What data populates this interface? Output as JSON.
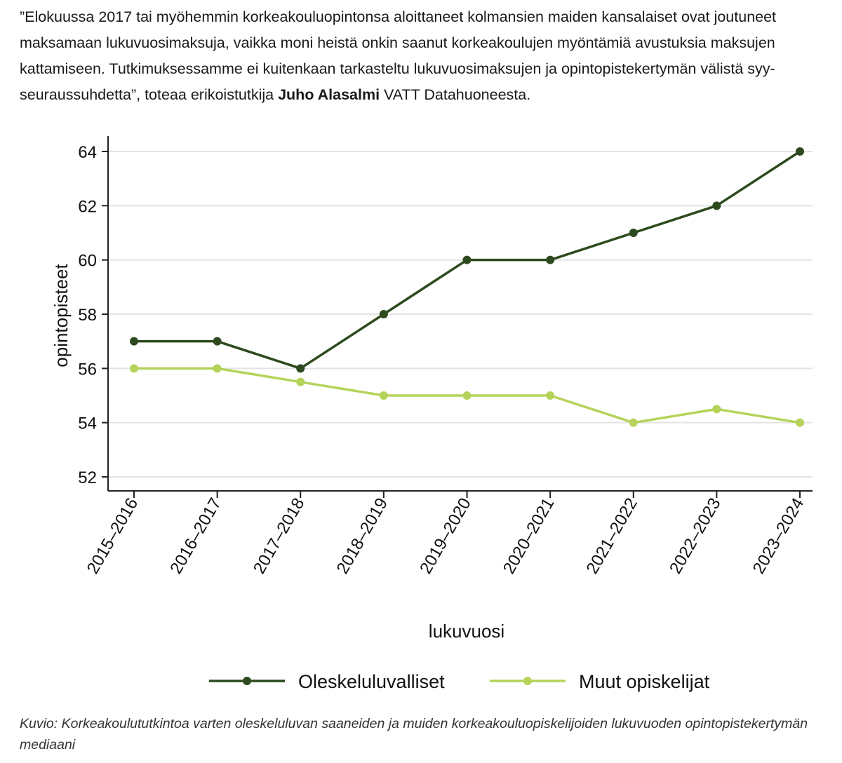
{
  "article": {
    "quote_text": "”Elokuussa 2017 tai myöhemmin korkeakouluopintonsa aloittaneet kolmansien maiden kansalaiset ovat joutuneet maksamaan lukuvuosimaksuja, vaikka moni heistä onkin saanut korkeakoulujen myöntämiä avustuksia maksujen kattamiseen. Tutkimuksessamme ei kuitenkaan tarkasteltu lukuvuosimaksujen ja opintopistekertymän välistä syy-seuraussuhdetta”, toteaa erikoistutkija ",
    "quote_person": "Juho Alasalmi",
    "quote_tail": " VATT Datahuoneesta.",
    "caption": "Kuvio: Korkeakoulututkintoa varten oleskeluluvan saaneiden ja muiden korkeakouluopiskelijoiden lukuvuoden opintopistekertymän mediaani"
  },
  "chart_data": {
    "type": "line",
    "title": "",
    "xlabel": "lukuvuosi",
    "ylabel": "opintopisteet",
    "ylim": [
      52,
      64
    ],
    "yticks": [
      52,
      54,
      56,
      58,
      60,
      62,
      64
    ],
    "grid": true,
    "legend_position": "bottom",
    "categories": [
      "2015–2016",
      "2016–2017",
      "2017–2018",
      "2018–2019",
      "2019–2020",
      "2020–2021",
      "2021–2022",
      "2022–2023",
      "2023–2024"
    ],
    "series": [
      {
        "name": "Oleskeluluvalliset",
        "color": "#2d4a1e",
        "values": [
          57,
          57,
          56,
          58,
          60,
          60,
          61,
          62,
          64
        ]
      },
      {
        "name": "Muut opiskelijat",
        "color": "#b5d35a",
        "values": [
          56,
          56,
          55.5,
          55,
          55,
          55,
          54,
          54.5,
          54
        ]
      }
    ]
  }
}
